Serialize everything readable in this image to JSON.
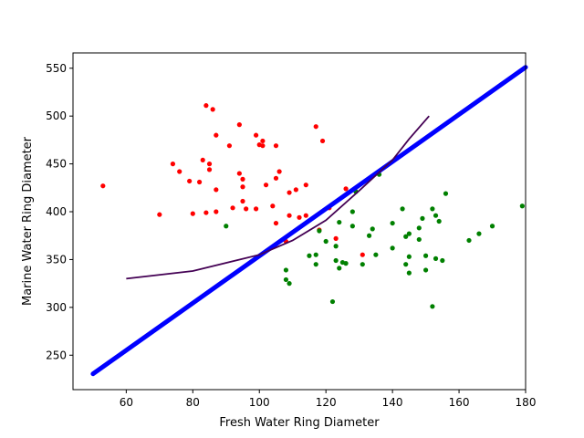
{
  "chart_data": {
    "type": "scatter",
    "title": "",
    "xlabel": "Fresh Water Ring Diameter",
    "ylabel": "Marine Water Ring Diameter",
    "xlim": [
      44,
      180
    ],
    "ylim": [
      214,
      566
    ],
    "xticks": [
      60,
      80,
      100,
      120,
      140,
      160,
      180
    ],
    "yticks": [
      250,
      300,
      350,
      400,
      450,
      500,
      550
    ],
    "grid": false,
    "series": [
      {
        "kind": "scatter",
        "color": "#ff0000",
        "points": [
          [
            53,
            427
          ],
          [
            70,
            397
          ],
          [
            74,
            450
          ],
          [
            76,
            442
          ],
          [
            79,
            432
          ],
          [
            80,
            398
          ],
          [
            82,
            431
          ],
          [
            83,
            454
          ],
          [
            84,
            511
          ],
          [
            84,
            399
          ],
          [
            85,
            450
          ],
          [
            85,
            444
          ],
          [
            86,
            507
          ],
          [
            87,
            423
          ],
          [
            87,
            480
          ],
          [
            87,
            400
          ],
          [
            91,
            469
          ],
          [
            92,
            404
          ],
          [
            94,
            440
          ],
          [
            94,
            491
          ],
          [
            95,
            434
          ],
          [
            95,
            426
          ],
          [
            95,
            411
          ],
          [
            96,
            403
          ],
          [
            99,
            480
          ],
          [
            99,
            403
          ],
          [
            100,
            470
          ],
          [
            101,
            474
          ],
          [
            101,
            469
          ],
          [
            102,
            428
          ],
          [
            104,
            406
          ],
          [
            105,
            469
          ],
          [
            105,
            388
          ],
          [
            105,
            435
          ],
          [
            106,
            442
          ],
          [
            108,
            369
          ],
          [
            109,
            420
          ],
          [
            109,
            396
          ],
          [
            111,
            423
          ],
          [
            112,
            394
          ],
          [
            114,
            396
          ],
          [
            114,
            428
          ],
          [
            117,
            489
          ],
          [
            118,
            381
          ],
          [
            119,
            474
          ],
          [
            121,
            404
          ],
          [
            123,
            372
          ],
          [
            126,
            424
          ],
          [
            131,
            355
          ]
        ]
      },
      {
        "kind": "scatter",
        "color": "#008000",
        "points": [
          [
            90,
            385
          ],
          [
            108,
            339
          ],
          [
            108,
            329
          ],
          [
            109,
            325
          ],
          [
            115,
            354
          ],
          [
            117,
            345
          ],
          [
            117,
            355
          ],
          [
            118,
            380
          ],
          [
            120,
            369
          ],
          [
            122,
            306
          ],
          [
            123,
            364
          ],
          [
            123,
            349
          ],
          [
            124,
            341
          ],
          [
            124,
            389
          ],
          [
            125,
            347
          ],
          [
            126,
            346
          ],
          [
            128,
            385
          ],
          [
            128,
            400
          ],
          [
            129,
            421
          ],
          [
            131,
            345
          ],
          [
            133,
            375
          ],
          [
            134,
            382
          ],
          [
            135,
            355
          ],
          [
            136,
            439
          ],
          [
            140,
            388
          ],
          [
            140,
            362
          ],
          [
            143,
            403
          ],
          [
            144,
            374
          ],
          [
            144,
            345
          ],
          [
            145,
            336
          ],
          [
            145,
            353
          ],
          [
            145,
            377
          ],
          [
            148,
            371
          ],
          [
            148,
            383
          ],
          [
            149,
            393
          ],
          [
            150,
            354
          ],
          [
            150,
            339
          ],
          [
            152,
            301
          ],
          [
            152,
            403
          ],
          [
            153,
            396
          ],
          [
            153,
            351
          ],
          [
            154,
            390
          ],
          [
            155,
            349
          ],
          [
            156,
            419
          ],
          [
            163,
            370
          ],
          [
            166,
            377
          ],
          [
            170,
            385
          ],
          [
            179,
            406
          ]
        ]
      },
      {
        "kind": "line",
        "color": "#0000ff",
        "x": [
          50,
          180
        ],
        "y": [
          230.5,
          551
        ]
      },
      {
        "kind": "curve",
        "color": "#440154",
        "x": [
          60,
          80,
          100,
          110,
          120,
          130,
          140,
          145,
          151
        ],
        "y": [
          330,
          338,
          355,
          370,
          391,
          422,
          454,
          476,
          500
        ]
      }
    ]
  }
}
